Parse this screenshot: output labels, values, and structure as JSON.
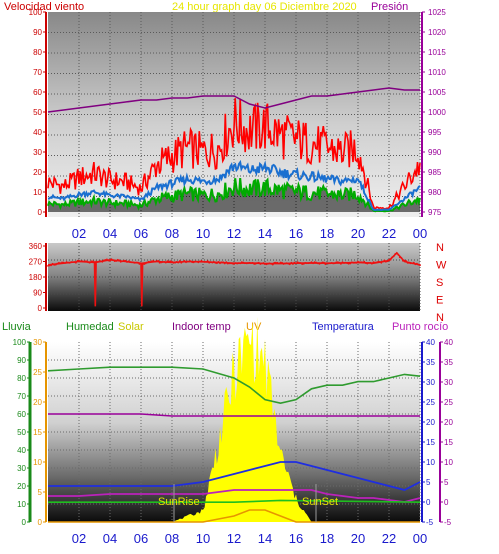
{
  "header": {
    "title": "24 hour graph day   06 Diciembre 2020",
    "left_label": "Velocidad viento",
    "right_label": "Presión"
  },
  "colors": {
    "wind_gust": "#ff0000",
    "wind_avg": "#1a6fd0",
    "wind_low": "#00aa00",
    "pressure": "#800080",
    "direction": "#ee1111",
    "humidity": "#2f9b2f",
    "solar": "#ffff00",
    "uv": "#e69500",
    "temperature": "#1f2ee0",
    "dewpoint": "#bb22bb",
    "indoor": "#990099"
  },
  "x_ticks": [
    "02",
    "04",
    "06",
    "08",
    "10",
    "12",
    "14",
    "16",
    "18",
    "20",
    "22",
    "00"
  ],
  "wind_panel": {
    "left_ticks": [
      "100",
      "90",
      "80",
      "70",
      "60",
      "50",
      "40",
      "30",
      "20",
      "10",
      "0"
    ],
    "right_ticks": [
      "1025",
      "1020",
      "1015",
      "1010",
      "1005",
      "1000",
      "995",
      "990",
      "985",
      "980",
      "975"
    ]
  },
  "dir_panel": {
    "left_ticks": [
      "360",
      "270",
      "180",
      "90",
      "0"
    ],
    "compass": [
      "N",
      "W",
      "S",
      "E",
      "N"
    ]
  },
  "bottom_panel": {
    "legend": {
      "rain": "Lluvia",
      "humidity": "Humedad",
      "solar": "Solar",
      "indoor": "Indoor temp",
      "uv": "UV",
      "temperature": "Temperatura",
      "dewpoint": "Punto rocío"
    },
    "rain_ticks": [
      "100",
      "90",
      "80",
      "70",
      "60",
      "50",
      "40",
      "30",
      "20",
      "10",
      "0"
    ],
    "uv_ticks": [
      "30",
      "25",
      "20",
      "15",
      "10",
      "5",
      "0"
    ],
    "temp_ticks_a": [
      "40",
      "35",
      "30",
      "25",
      "20",
      "15",
      "10",
      "5",
      "0",
      "-5"
    ],
    "temp_ticks_b": [
      "40",
      "35",
      "30",
      "25",
      "20",
      "15",
      "10",
      "5",
      "0",
      "-5"
    ],
    "sunrise_label": "SunRise",
    "sunset_label": "SunSet"
  },
  "chart_data": [
    {
      "type": "line",
      "x_hours": [
        0,
        1,
        2,
        3,
        4,
        5,
        6,
        7,
        8,
        9,
        10,
        11,
        12,
        13,
        14,
        15,
        16,
        17,
        18,
        19,
        20,
        21,
        22,
        23,
        24
      ],
      "series": [
        {
          "name": "Velocidad viento",
          "values": [
            14,
            12,
            16,
            18,
            15,
            14,
            11,
            22,
            26,
            30,
            28,
            30,
            42,
            38,
            40,
            36,
            34,
            32,
            30,
            28,
            30,
            2,
            2,
            12,
            22
          ]
        },
        {
          "name": "Presión",
          "values": [
            1000,
            1000.5,
            1001,
            1001.5,
            1002,
            1002.5,
            1003,
            1003,
            1003.5,
            1003.5,
            1004,
            1004,
            1004,
            1002,
            1001,
            1002,
            1003,
            1004,
            1004,
            1004.5,
            1005,
            1005.5,
            1006,
            1005.5,
            1005.5
          ]
        }
      ],
      "ylim": [
        0,
        100
      ],
      "y2lim": [
        975,
        1025
      ]
    },
    {
      "type": "scatter",
      "x_hours": [
        0,
        1,
        2,
        3,
        3.05,
        3.1,
        4,
        5,
        6,
        6.05,
        6.1,
        7,
        8,
        9,
        10,
        11,
        12,
        13,
        14,
        15,
        16,
        17,
        18,
        19,
        20,
        21,
        22,
        22.5,
        23,
        24
      ],
      "values": [
        250,
        260,
        270,
        265,
        10,
        265,
        280,
        270,
        260,
        10,
        260,
        270,
        265,
        270,
        268,
        265,
        260,
        262,
        258,
        258,
        260,
        262,
        260,
        262,
        265,
        260,
        275,
        320,
        270,
        250
      ],
      "ylim": [
        0,
        360
      ]
    },
    {
      "type": "line",
      "x_hours": [
        0,
        2,
        4,
        6,
        8,
        10,
        12,
        13,
        14,
        15,
        16,
        17,
        18,
        19,
        20,
        21,
        22,
        23,
        24
      ],
      "series": [
        {
          "name": "Humedad",
          "values": [
            84,
            85,
            86,
            86,
            86,
            85,
            80,
            75,
            68,
            66,
            68,
            74,
            76,
            76,
            78,
            78,
            80,
            82,
            81
          ]
        },
        {
          "name": "Solar",
          "values": [
            0,
            0,
            0,
            0,
            0,
            2,
            26,
            32,
            28,
            12,
            4,
            0,
            0,
            0,
            0,
            0,
            0,
            0,
            0
          ]
        },
        {
          "name": "Indoor temp",
          "values": [
            22,
            22,
            22,
            22,
            21.5,
            21.5,
            21.5,
            21.5,
            21.5,
            21.5,
            21.5,
            21.5,
            21.5,
            21.5,
            21.5,
            21.5,
            21.5,
            21.5,
            21.5
          ]
        },
        {
          "name": "UV",
          "values": [
            0,
            0,
            0,
            0,
            0,
            0,
            1,
            2,
            2,
            1,
            0,
            0,
            0,
            0,
            0,
            0,
            0,
            0,
            0
          ]
        },
        {
          "name": "Temperatura",
          "values": [
            4,
            4,
            4,
            4,
            4,
            5,
            7,
            8,
            9,
            10,
            10,
            9,
            8,
            7,
            6,
            5,
            4,
            3,
            5
          ]
        },
        {
          "name": "Punto rocío",
          "values": [
            1.5,
            1.5,
            2,
            2,
            2,
            2,
            3,
            3,
            3,
            3,
            3,
            3,
            2,
            1.5,
            1,
            1,
            0.5,
            0,
            1
          ]
        }
      ],
      "ylim": [
        0,
        100
      ],
      "y2lim": [
        -5,
        40
      ]
    }
  ]
}
